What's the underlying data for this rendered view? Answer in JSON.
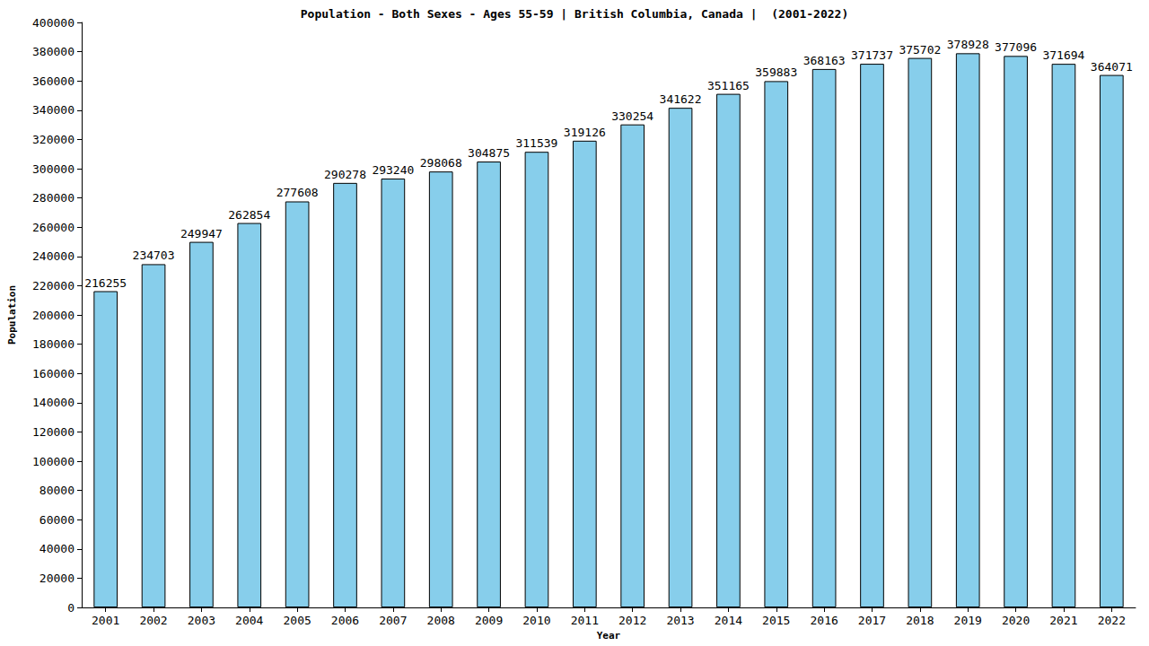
{
  "chart_data": {
    "type": "bar",
    "title": "Population - Both Sexes - Ages 55-59 | British Columbia, Canada |  (2001-2022)",
    "x_label": "Year",
    "y_label": "Population",
    "categories": [
      "2001",
      "2002",
      "2003",
      "2004",
      "2005",
      "2006",
      "2007",
      "2008",
      "2009",
      "2010",
      "2011",
      "2012",
      "2013",
      "2014",
      "2015",
      "2016",
      "2017",
      "2018",
      "2019",
      "2020",
      "2021",
      "2022"
    ],
    "values": [
      216255,
      234703,
      249947,
      262854,
      277608,
      290278,
      293240,
      298068,
      304875,
      311539,
      319126,
      330254,
      341622,
      351165,
      359883,
      368163,
      371737,
      375702,
      378928,
      377096,
      371694,
      364071
    ],
    "color": "#87ceeb",
    "ylim": [
      0,
      400000
    ],
    "yticks": [
      0,
      20000,
      40000,
      60000,
      80000,
      100000,
      120000,
      140000,
      160000,
      180000,
      200000,
      220000,
      240000,
      260000,
      280000,
      300000,
      320000,
      340000,
      360000,
      380000,
      400000
    ],
    "grid": false,
    "data_labels": true
  }
}
